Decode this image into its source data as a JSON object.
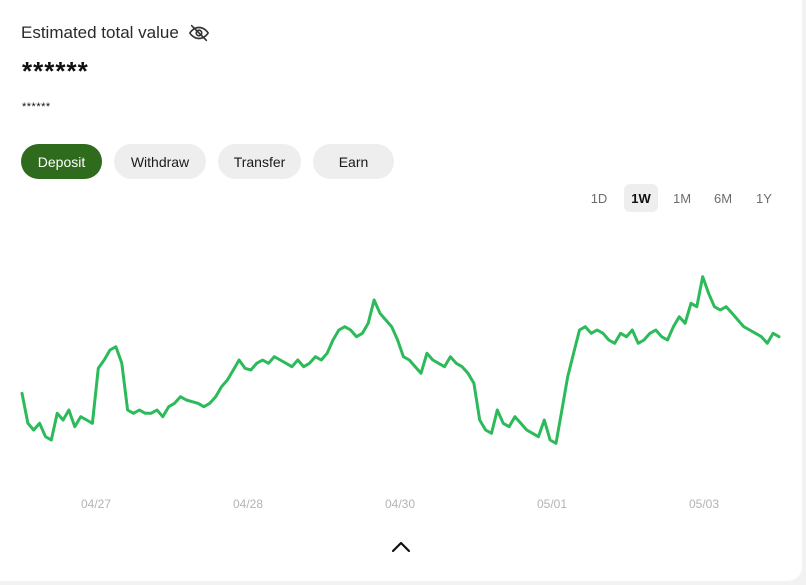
{
  "header": {
    "title": "Estimated total value",
    "main_value": "******",
    "sub_value": "******",
    "visibility_icon": "eye-off-icon"
  },
  "actions": [
    {
      "label": "Deposit",
      "primary": true
    },
    {
      "label": "Withdraw",
      "primary": false
    },
    {
      "label": "Transfer",
      "primary": false
    },
    {
      "label": "Earn",
      "primary": false
    }
  ],
  "ranges": [
    {
      "label": "1D",
      "active": false
    },
    {
      "label": "1W",
      "active": true
    },
    {
      "label": "1M",
      "active": false
    },
    {
      "label": "6M",
      "active": false
    },
    {
      "label": "1Y",
      "active": false
    }
  ],
  "colors": {
    "accent": "#2e6b1c",
    "line": "#2dba5a",
    "axis_text": "#b3b3b3"
  },
  "chart_data": {
    "type": "line",
    "x_tick_labels": [
      "04/27",
      "04/28",
      "04/30",
      "05/01",
      "05/03"
    ],
    "series": [
      {
        "values": [
          40,
          22,
          18,
          22,
          14,
          12,
          28,
          24,
          30,
          20,
          26,
          24,
          22,
          55,
          60,
          66,
          68,
          58,
          30,
          28,
          30,
          28,
          28,
          30,
          26,
          32,
          34,
          38,
          36,
          35,
          34,
          32,
          34,
          38,
          44,
          48,
          54,
          60,
          55,
          54,
          58,
          60,
          58,
          62,
          60,
          58,
          56,
          60,
          56,
          58,
          62,
          60,
          64,
          72,
          78,
          80,
          78,
          74,
          76,
          82,
          96,
          88,
          84,
          80,
          72,
          62,
          60,
          56,
          52,
          64,
          60,
          58,
          56,
          62,
          58,
          56,
          52,
          46,
          24,
          18,
          16,
          30,
          22,
          20,
          26,
          22,
          18,
          16,
          14,
          24,
          12,
          10,
          30,
          50,
          64,
          78,
          80,
          76,
          78,
          76,
          72,
          70,
          76,
          74,
          78,
          70,
          72,
          76,
          78,
          74,
          72,
          80,
          86,
          82,
          94,
          92,
          110,
          100,
          92,
          90,
          92,
          88,
          84,
          80,
          78,
          76,
          74,
          70,
          76,
          74
        ]
      }
    ],
    "ylim": [
      0,
      120
    ],
    "grid": false,
    "legend": "none"
  },
  "footer": {
    "expand_icon": "chevron-up-icon"
  }
}
